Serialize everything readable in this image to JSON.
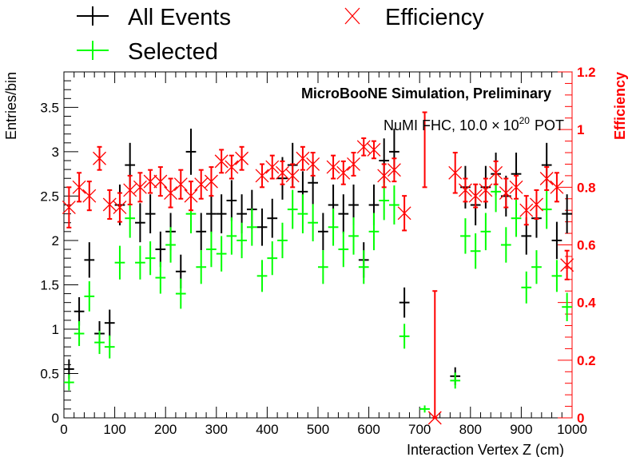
{
  "chart_data": {
    "type": "scatter",
    "title": "",
    "xlabel": "Interaction Vertex Z (cm)",
    "ylabel": "Entries/bin",
    "y2label": "Efficiency",
    "xlim": [
      0,
      1000
    ],
    "ylim": [
      0,
      3.9
    ],
    "y2lim": [
      0,
      1.2
    ],
    "legend": {
      "placement": "top",
      "entries": [
        {
          "name": "All Events",
          "color": "#000000",
          "marker": "cross"
        },
        {
          "name": "Efficiency",
          "color": "#ff0000",
          "marker": "x"
        },
        {
          "name": "Selected",
          "color": "#00ff00",
          "marker": "cross"
        }
      ]
    },
    "annotations": {
      "title_text": "MicroBooNE Simulation, Preliminary",
      "pot_prefix": "NuMI FHC, 10.0",
      "pot_times": "×",
      "pot_base": "10",
      "pot_exp": "20",
      "pot_suffix": "POT"
    },
    "x_ticks": [
      0,
      100,
      200,
      300,
      400,
      500,
      600,
      700,
      800,
      900,
      1000
    ],
    "y_ticks": [
      {
        "v": 0,
        "label": "0"
      },
      {
        "v": 0.5,
        "label": "0.5"
      },
      {
        "v": 1,
        "label": "1"
      },
      {
        "v": 1.5,
        "label": "1.5"
      },
      {
        "v": 2,
        "label": "2"
      },
      {
        "v": 2.5,
        "label": "2.5"
      },
      {
        "v": 3,
        "label": "3"
      },
      {
        "v": 3.5,
        "label": "3.5"
      }
    ],
    "y2_ticks": [
      {
        "v": 0,
        "label": "0"
      },
      {
        "v": 0.2,
        "label": "0.2"
      },
      {
        "v": 0.4,
        "label": "0.4"
      },
      {
        "v": 0.6,
        "label": "0.6"
      },
      {
        "v": 0.8,
        "label": "0.8"
      },
      {
        "v": 1,
        "label": "1"
      },
      {
        "v": 1.2,
        "label": "1.2"
      }
    ],
    "bin_halfwidth": 10,
    "x": [
      10,
      30,
      50,
      70,
      90,
      110,
      130,
      150,
      170,
      190,
      210,
      230,
      250,
      270,
      290,
      310,
      330,
      350,
      370,
      390,
      410,
      430,
      450,
      470,
      490,
      510,
      530,
      550,
      570,
      590,
      610,
      630,
      650,
      670,
      690,
      710,
      730,
      750,
      770,
      790,
      810,
      830,
      850,
      870,
      890,
      910,
      930,
      950,
      970,
      990
    ],
    "series": [
      {
        "name": "All Events",
        "values": [
          0.55,
          1.2,
          1.78,
          0.95,
          1.07,
          2.4,
          2.85,
          2.2,
          2.3,
          1.9,
          2.1,
          1.65,
          3.0,
          2.1,
          2.3,
          2.3,
          2.45,
          2.3,
          2.35,
          2.15,
          2.25,
          2.7,
          2.85,
          2.55,
          2.65,
          2.1,
          2.4,
          2.3,
          2.4,
          1.78,
          2.4,
          2.9,
          3.0,
          1.3,
          null,
          null,
          null,
          null,
          0.47,
          2.6,
          2.4,
          2.6,
          2.75,
          2.5,
          2.75,
          2.05,
          2.25,
          2.85,
          2.0,
          2.3
        ],
        "errors": [
          0.11,
          0.16,
          0.2,
          0.14,
          0.15,
          0.23,
          0.25,
          0.22,
          0.22,
          0.2,
          0.21,
          0.19,
          0.26,
          0.21,
          0.22,
          0.22,
          0.23,
          0.22,
          0.22,
          0.21,
          0.22,
          0.24,
          0.25,
          0.23,
          0.24,
          0.21,
          0.23,
          0.22,
          0.23,
          0.2,
          0.23,
          0.25,
          0.26,
          0.17,
          null,
          null,
          null,
          null,
          0.1,
          0.24,
          0.23,
          0.24,
          0.24,
          0.23,
          0.24,
          0.21,
          0.22,
          0.25,
          0.21,
          0.22
        ]
      },
      {
        "name": "Selected",
        "values": [
          0.4,
          0.95,
          1.37,
          0.85,
          0.8,
          1.75,
          2.25,
          1.75,
          1.8,
          1.58,
          1.95,
          1.4,
          2.3,
          1.7,
          1.9,
          1.85,
          2.05,
          2.0,
          2.15,
          1.6,
          1.8,
          2.0,
          2.35,
          2.3,
          2.2,
          1.7,
          2.15,
          1.9,
          2.05,
          1.7,
          2.1,
          2.45,
          2.4,
          0.92,
          null,
          0.1,
          null,
          null,
          0.42,
          2.05,
          1.88,
          2.1,
          2.55,
          1.95,
          2.25,
          1.47,
          1.7,
          2.35,
          1.6,
          1.25
        ],
        "errors": [
          0.09,
          0.14,
          0.17,
          0.13,
          0.13,
          0.19,
          0.22,
          0.19,
          0.19,
          0.18,
          0.2,
          0.17,
          0.22,
          0.19,
          0.2,
          0.2,
          0.21,
          0.2,
          0.21,
          0.18,
          0.19,
          0.2,
          0.22,
          0.22,
          0.21,
          0.19,
          0.21,
          0.2,
          0.21,
          0.19,
          0.21,
          0.22,
          0.22,
          0.14,
          null,
          0.04,
          null,
          null,
          0.09,
          0.2,
          0.2,
          0.21,
          0.23,
          0.2,
          0.21,
          0.18,
          0.19,
          0.22,
          0.18,
          0.16
        ]
      },
      {
        "name": "Efficiency",
        "values": [
          0.73,
          0.8,
          0.77,
          0.9,
          0.74,
          0.73,
          0.79,
          0.8,
          0.82,
          0.82,
          0.78,
          0.81,
          0.77,
          0.81,
          0.82,
          0.89,
          0.87,
          0.9,
          null,
          0.84,
          0.87,
          0.85,
          0.84,
          0.9,
          0.88,
          null,
          0.87,
          0.85,
          0.88,
          0.94,
          0.93,
          0.84,
          0.86,
          0.71,
          null,
          null,
          0.0,
          null,
          0.85,
          0.79,
          0.77,
          0.79,
          0.85,
          0.78,
          0.8,
          0.72,
          0.74,
          0.83,
          0.8,
          0.53
        ],
        "errors": [
          0.07,
          0.05,
          0.05,
          0.04,
          0.05,
          0.05,
          0.05,
          0.05,
          0.04,
          0.05,
          0.05,
          0.05,
          0.05,
          0.05,
          0.05,
          0.04,
          0.04,
          0.04,
          null,
          0.04,
          0.04,
          0.04,
          0.04,
          0.04,
          0.04,
          null,
          0.04,
          0.04,
          0.04,
          0.03,
          0.03,
          0.04,
          0.04,
          0.06,
          null,
          null,
          0.44,
          null,
          0.07,
          0.04,
          0.04,
          0.04,
          0.04,
          0.05,
          0.04,
          0.05,
          0.05,
          0.04,
          0.05,
          0.05
        ]
      }
    ],
    "efficiency_errorbar_only": [
      {
        "x": 710,
        "low": 0.8,
        "high": 1.06
      }
    ]
  }
}
